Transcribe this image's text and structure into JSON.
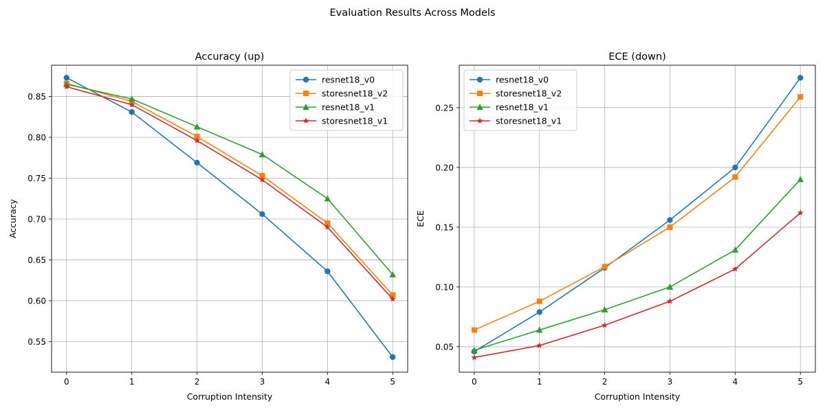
{
  "figure": {
    "suptitle": "Evaluation Results Across Models"
  },
  "chart_data": [
    {
      "type": "line",
      "title": "Accuracy (up)",
      "xlabel": "Corruption Intensity",
      "ylabel": "Accuracy",
      "x": [
        0,
        1,
        2,
        3,
        4,
        5
      ],
      "xlim": [
        -0.23,
        5.23
      ],
      "ylim": [
        0.5125,
        0.8883
      ],
      "xticks": [
        0,
        1,
        2,
        3,
        4,
        5
      ],
      "yticks": [
        0.55,
        0.6,
        0.65,
        0.7,
        0.75,
        0.8,
        0.85
      ],
      "grid": true,
      "legend_position": "top-right",
      "series": [
        {
          "name": "resnet18_v0",
          "color": "#1f77b4",
          "marker": "circle",
          "values": [
            0.873,
            0.831,
            0.769,
            0.706,
            0.636,
            0.531
          ]
        },
        {
          "name": "storesnet18_v2",
          "color": "#ff7f0e",
          "marker": "square",
          "values": [
            0.866,
            0.844,
            0.801,
            0.753,
            0.695,
            0.607
          ]
        },
        {
          "name": "resnet18_v1",
          "color": "#2ca02c",
          "marker": "triangle",
          "values": [
            0.865,
            0.847,
            0.813,
            0.779,
            0.725,
            0.632
          ]
        },
        {
          "name": "storesnet18_v1",
          "color": "#d62728",
          "marker": "star",
          "values": [
            0.862,
            0.84,
            0.796,
            0.748,
            0.69,
            0.602
          ]
        }
      ]
    },
    {
      "type": "line",
      "title": "ECE (down)",
      "xlabel": "Corruption Intensity",
      "ylabel": "ECE",
      "x": [
        0,
        1,
        2,
        3,
        4,
        5
      ],
      "xlim": [
        -0.23,
        5.23
      ],
      "ylim": [
        0.0287,
        0.2855
      ],
      "xticks": [
        0,
        1,
        2,
        3,
        4,
        5
      ],
      "yticks": [
        0.05,
        0.1,
        0.15,
        0.2,
        0.25
      ],
      "grid": true,
      "legend_position": "top-left",
      "series": [
        {
          "name": "resnet18_v0",
          "color": "#1f77b4",
          "marker": "circle",
          "values": [
            0.046,
            0.079,
            0.116,
            0.156,
            0.2,
            0.275
          ]
        },
        {
          "name": "storesnet18_v2",
          "color": "#ff7f0e",
          "marker": "square",
          "values": [
            0.064,
            0.088,
            0.117,
            0.15,
            0.192,
            0.259
          ]
        },
        {
          "name": "resnet18_v1",
          "color": "#2ca02c",
          "marker": "triangle",
          "values": [
            0.047,
            0.064,
            0.081,
            0.1,
            0.131,
            0.19
          ]
        },
        {
          "name": "storesnet18_v1",
          "color": "#d62728",
          "marker": "star",
          "values": [
            0.041,
            0.051,
            0.068,
            0.088,
            0.115,
            0.162
          ]
        }
      ]
    }
  ]
}
